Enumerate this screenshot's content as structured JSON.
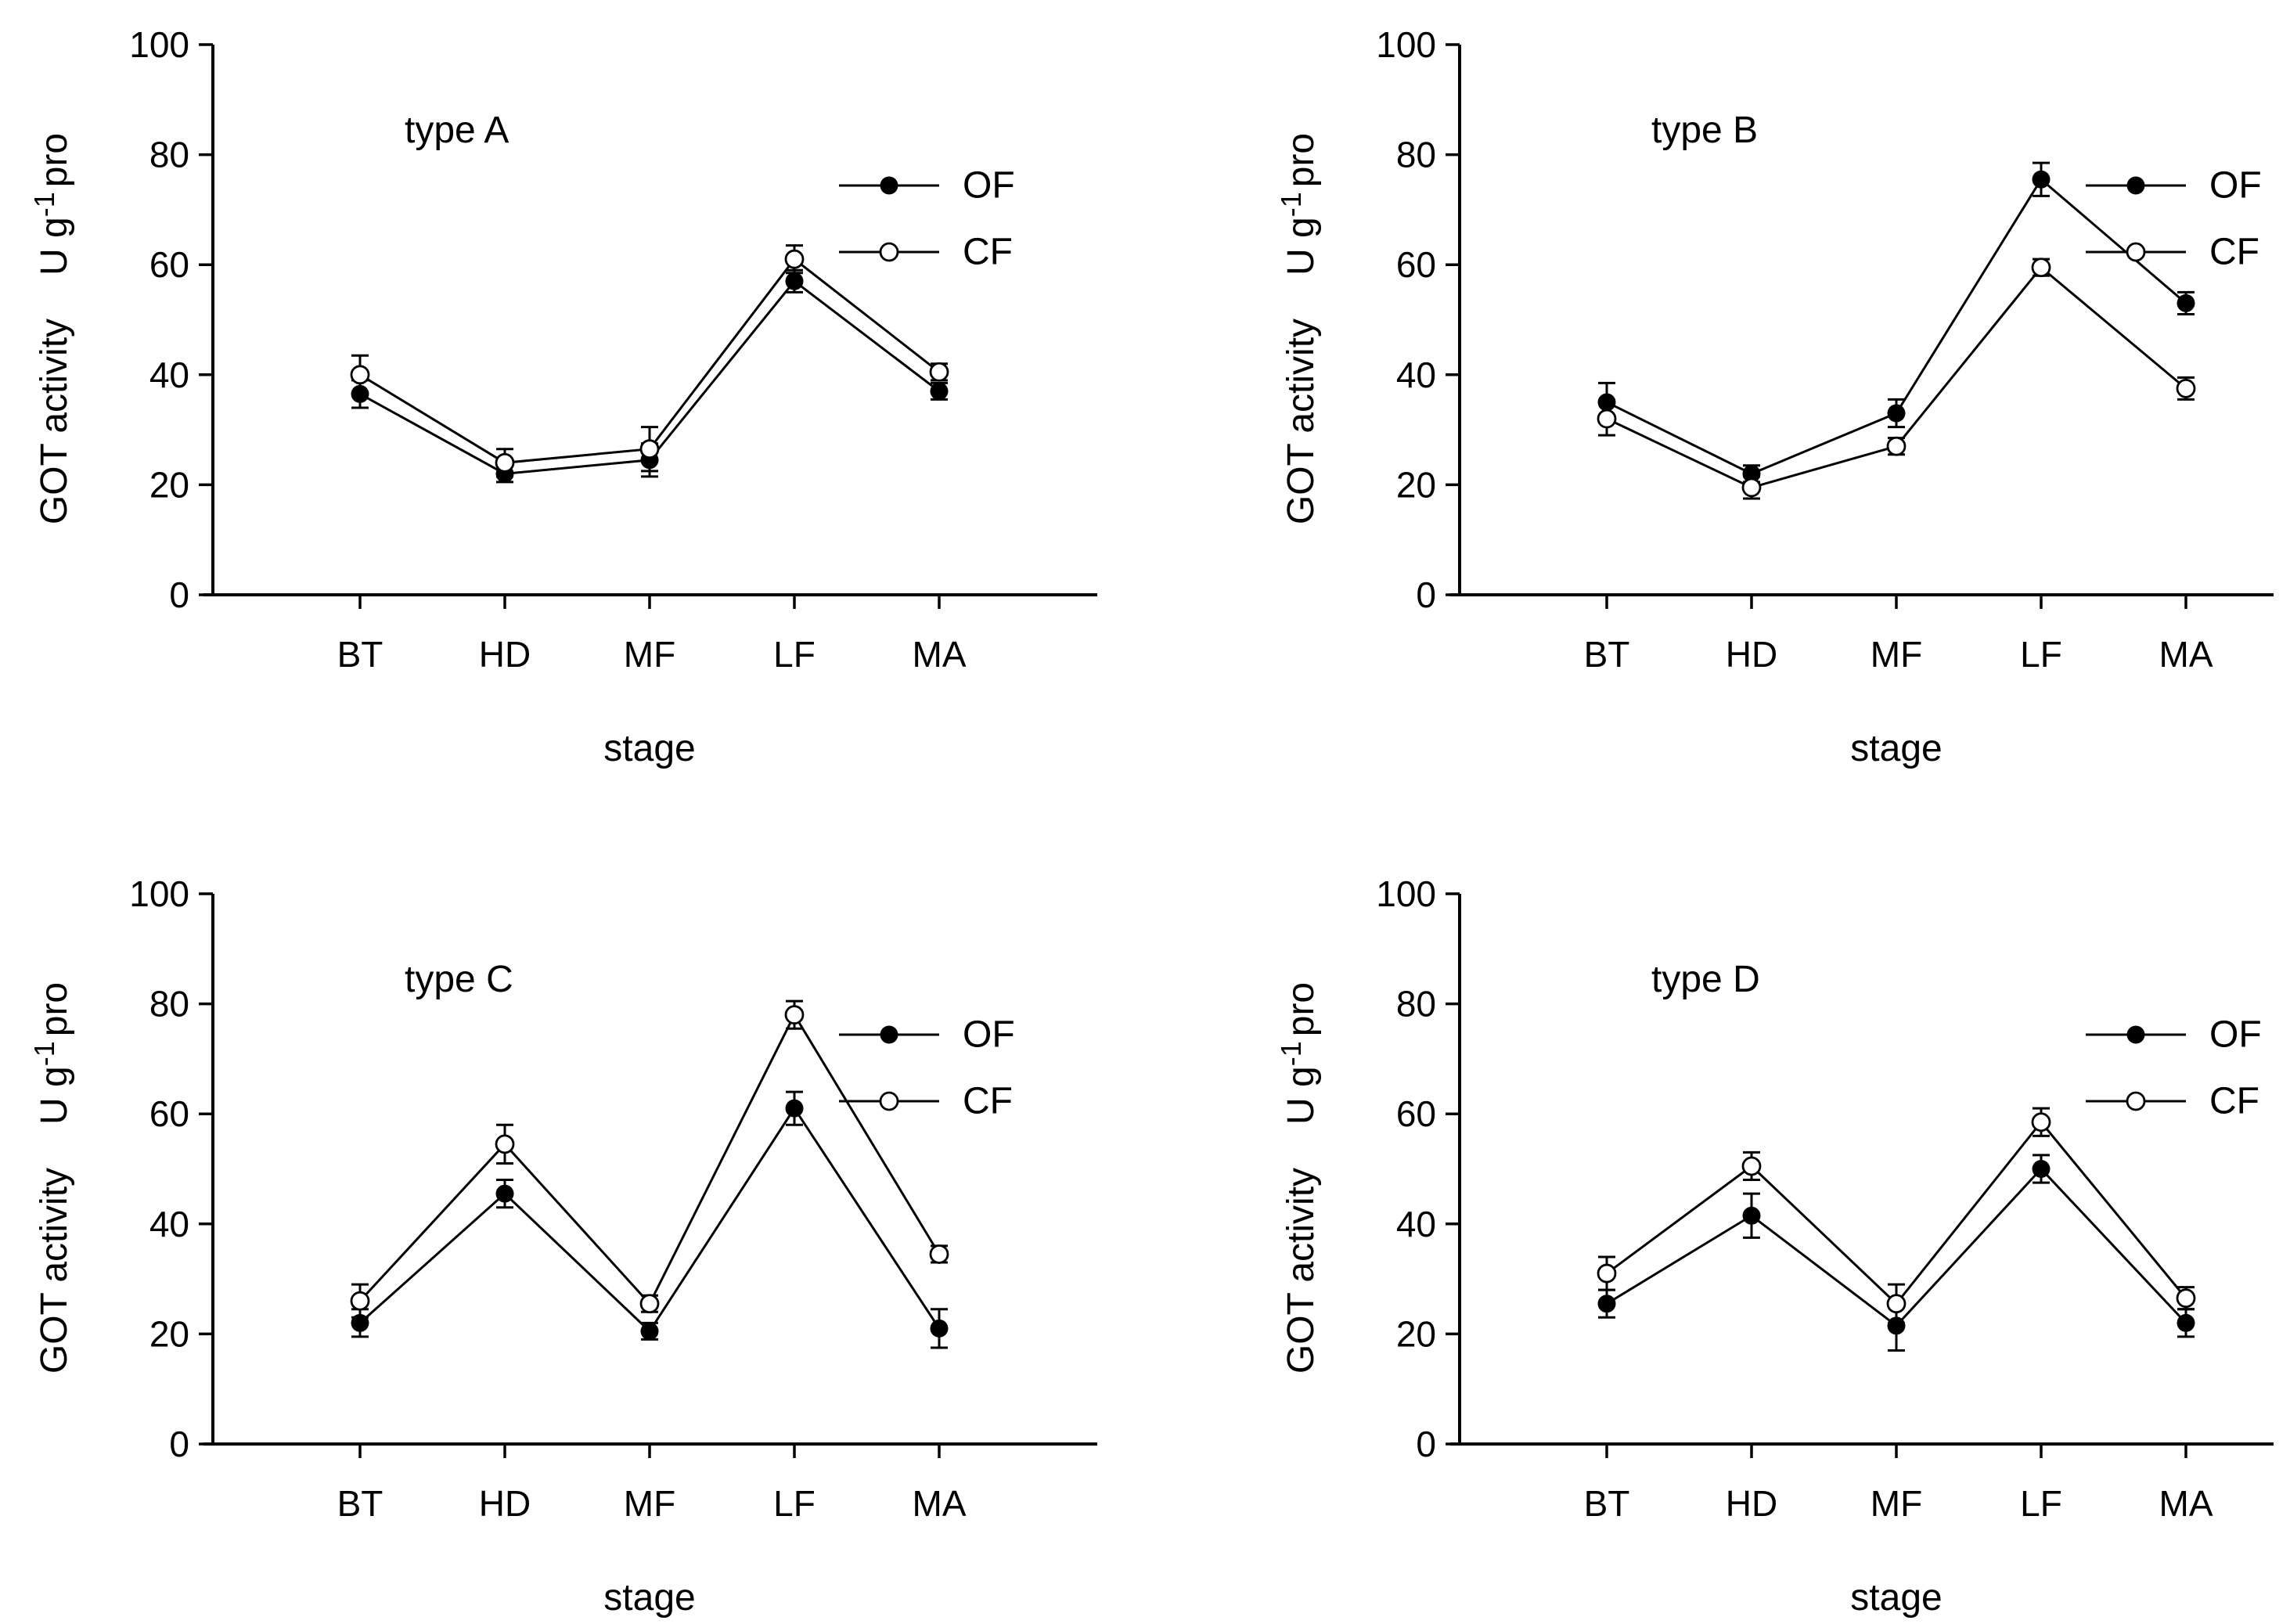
{
  "figure": {
    "background": "#ffffff",
    "ink_color": "#000000",
    "legend_labels": {
      "of": "OF",
      "cf": "CF"
    }
  },
  "chart_data": [
    {
      "type": "line",
      "title": "type A",
      "xlabel": "stage",
      "ylabel": "GOT activity  U g-1 pro",
      "ylabel_parts": {
        "main": "GOT activity",
        "unit_base": "U g",
        "unit_exponent": "-1",
        "unit_suffix": "pro"
      },
      "categories": [
        "BT",
        "HD",
        "MF",
        "LF",
        "MA"
      ],
      "ylim": [
        0,
        100
      ],
      "yticks": [
        0,
        20,
        40,
        60,
        80,
        100
      ],
      "grid": false,
      "legend_position": "upper right",
      "series": [
        {
          "name": "OF",
          "marker": "filled-circle",
          "values": [
            36.5,
            22,
            24.5,
            57,
            37
          ],
          "errors": [
            2.5,
            1.5,
            3,
            2,
            1.5
          ]
        },
        {
          "name": "CF",
          "marker": "open-circle",
          "values": [
            40,
            24,
            26.5,
            61,
            40.5
          ],
          "errors": [
            3.5,
            2.5,
            4,
            2.5,
            1.5
          ]
        }
      ]
    },
    {
      "type": "line",
      "title": "type B",
      "xlabel": "stage",
      "ylabel": "GOT activity  U g-1 pro",
      "ylabel_parts": {
        "main": "GOT activity",
        "unit_base": "U g",
        "unit_exponent": "-1",
        "unit_suffix": "pro"
      },
      "categories": [
        "BT",
        "HD",
        "MF",
        "LF",
        "MA"
      ],
      "ylim": [
        0,
        100
      ],
      "yticks": [
        0,
        20,
        40,
        60,
        80,
        100
      ],
      "grid": false,
      "legend_position": "upper right",
      "series": [
        {
          "name": "OF",
          "marker": "filled-circle",
          "values": [
            35,
            22,
            33,
            75.5,
            53
          ],
          "errors": [
            3.5,
            1.5,
            2.5,
            3,
            2
          ]
        },
        {
          "name": "CF",
          "marker": "open-circle",
          "values": [
            32,
            19.5,
            27,
            59.5,
            37.5
          ],
          "errors": [
            3,
            2,
            1.5,
            1.5,
            2
          ]
        }
      ]
    },
    {
      "type": "line",
      "title": "type C",
      "xlabel": "stage",
      "ylabel": "GOT activity  U g-1 pro",
      "ylabel_parts": {
        "main": "GOT activity",
        "unit_base": "U g",
        "unit_exponent": "-1",
        "unit_suffix": "pro"
      },
      "categories": [
        "BT",
        "HD",
        "MF",
        "LF",
        "MA"
      ],
      "ylim": [
        0,
        100
      ],
      "yticks": [
        0,
        20,
        40,
        60,
        80,
        100
      ],
      "grid": false,
      "legend_position": "upper right",
      "series": [
        {
          "name": "OF",
          "marker": "filled-circle",
          "values": [
            22,
            45.5,
            20.5,
            61,
            21
          ],
          "errors": [
            2.5,
            2.5,
            1.5,
            3,
            3.5
          ]
        },
        {
          "name": "CF",
          "marker": "open-circle",
          "values": [
            26,
            54.5,
            25.5,
            78,
            34.5
          ],
          "errors": [
            3,
            3.5,
            1.5,
            2.5,
            1.5
          ]
        }
      ]
    },
    {
      "type": "line",
      "title": "type D",
      "xlabel": "stage",
      "ylabel": "GOT activity  U g-1 pro",
      "ylabel_parts": {
        "main": "GOT activity",
        "unit_base": "U g",
        "unit_exponent": "-1",
        "unit_suffix": "pro"
      },
      "categories": [
        "BT",
        "HD",
        "MF",
        "LF",
        "MA"
      ],
      "ylim": [
        0,
        100
      ],
      "yticks": [
        0,
        20,
        40,
        60,
        80,
        100
      ],
      "grid": false,
      "legend_position": "upper right",
      "series": [
        {
          "name": "OF",
          "marker": "filled-circle",
          "values": [
            25.5,
            41.5,
            21.5,
            50,
            22
          ],
          "errors": [
            2.5,
            4,
            4.5,
            2.5,
            2.5
          ]
        },
        {
          "name": "CF",
          "marker": "open-circle",
          "values": [
            31,
            50.5,
            25.5,
            58.5,
            26.5
          ],
          "errors": [
            3,
            2.5,
            3.5,
            2.5,
            2
          ]
        }
      ]
    }
  ]
}
